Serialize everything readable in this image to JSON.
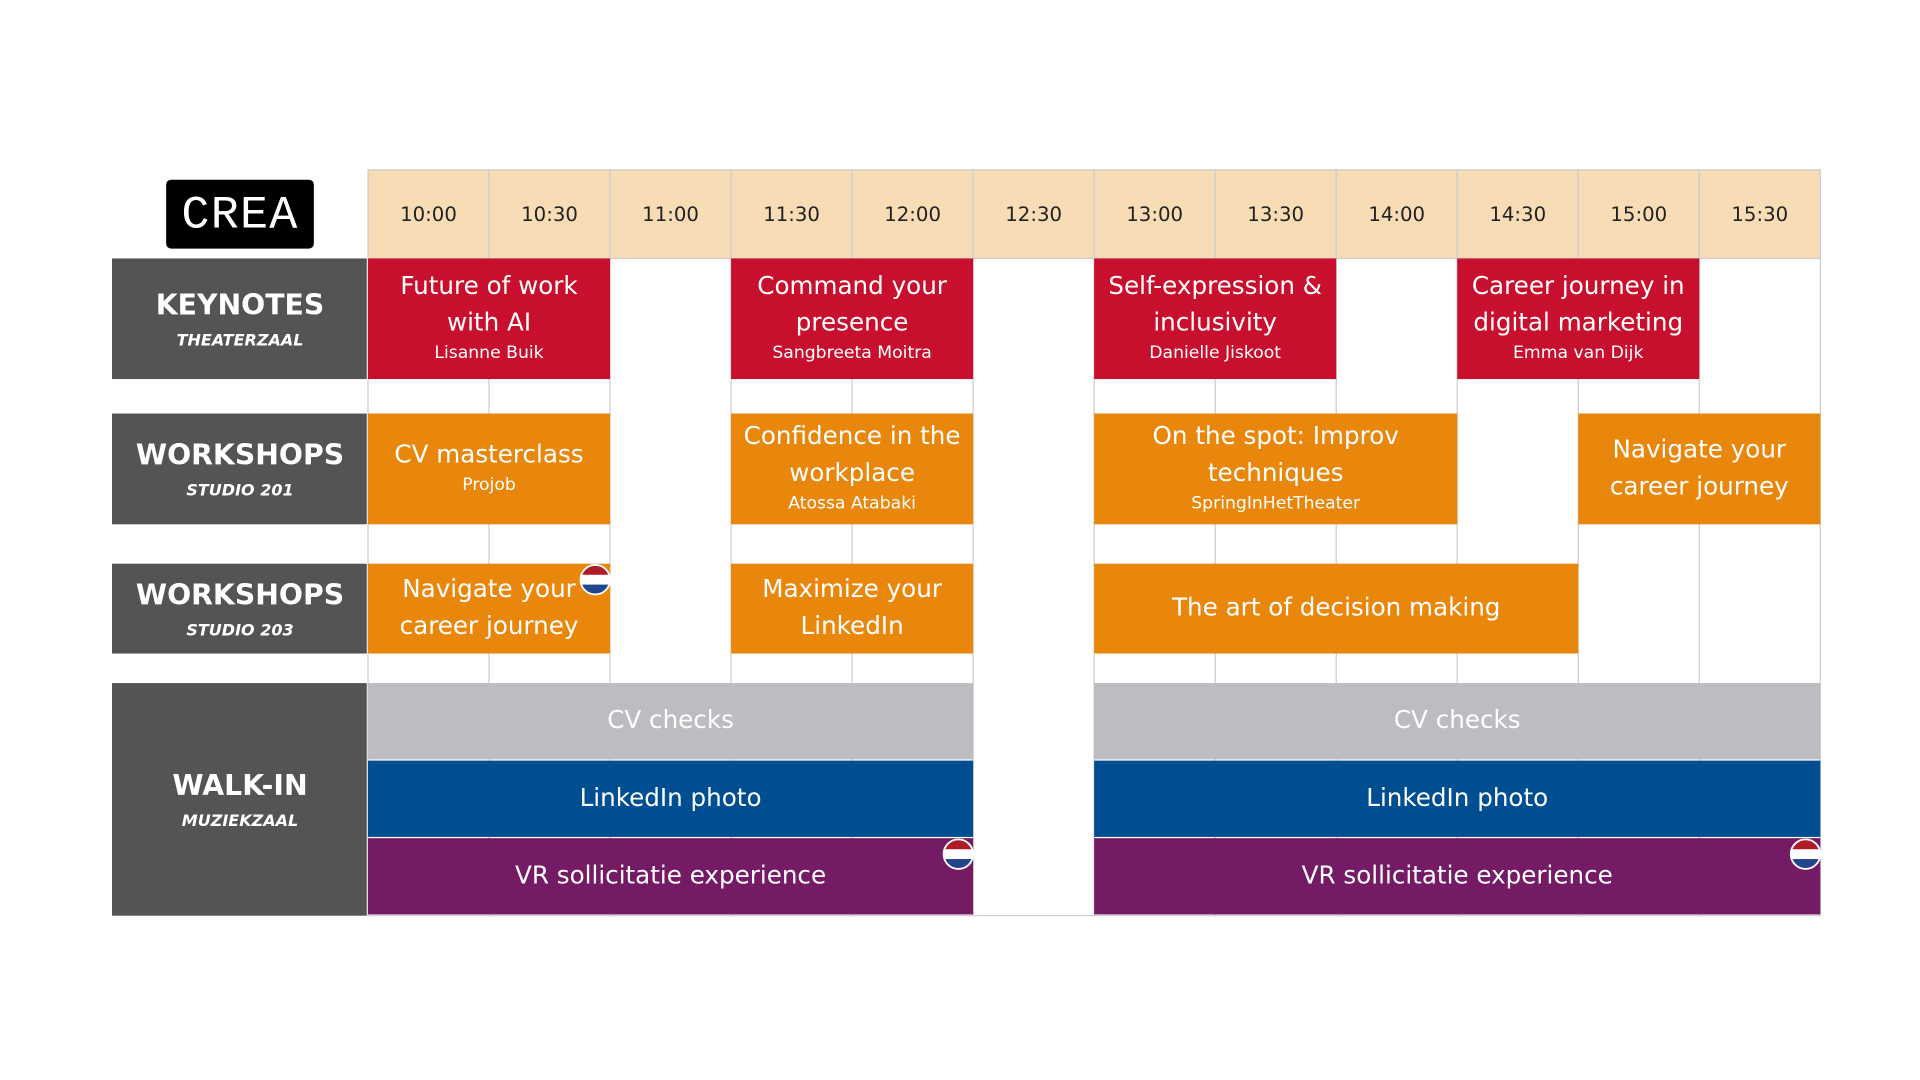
{
  "logo": "CREA",
  "times": [
    "10:00",
    "10:30",
    "11:00",
    "11:30",
    "12:00",
    "12:30",
    "13:00",
    "13:30",
    "14:00",
    "14:30",
    "15:00",
    "15:30"
  ],
  "rows": [
    {
      "name": "KEYNOTES",
      "room": "THEATERZAAL",
      "color": "#c8102e",
      "sessions": [
        {
          "title": "Future of work with AI",
          "speaker": "Lisanne Buik",
          "start": "10:00",
          "span": 2
        },
        {
          "title": "Command your presence",
          "speaker": "Sangbreeta Moitra",
          "start": "11:30",
          "span": 2
        },
        {
          "title": "Self-expression & inclusivity",
          "speaker": "Danielle Jiskoot",
          "start": "13:00",
          "span": 2
        },
        {
          "title": "Career journey in digital marketing",
          "speaker": "Emma van Dijk",
          "start": "14:30",
          "span": 2
        }
      ]
    },
    {
      "name": "WORKSHOPS",
      "room": "STUDIO 201",
      "color": "#e8870b",
      "sessions": [
        {
          "title": "CV masterclass",
          "speaker": "Projob",
          "start": "10:00",
          "span": 2
        },
        {
          "title": "Confidence in the workplace",
          "speaker": "Atossa Atabaki",
          "start": "11:30",
          "span": 2
        },
        {
          "title": "On the spot: Improv techniques",
          "speaker": "SpringInHetTheater",
          "start": "13:00",
          "span": 3
        },
        {
          "title": "Navigate your career journey",
          "start": "15:00",
          "span": 2
        }
      ]
    },
    {
      "name": "WORKSHOPS",
      "room": "STUDIO 203",
      "color": "#e8870b",
      "sessions": [
        {
          "title": "Navigate your career journey",
          "start": "10:00",
          "span": 2,
          "dutch": true
        },
        {
          "title": "Maximize your LinkedIn",
          "start": "11:30",
          "span": 2
        },
        {
          "title": "The art of decision making",
          "start": "13:00",
          "span": 4
        }
      ]
    },
    {
      "name": "WALK-IN",
      "room": "MUZIEKZAAL",
      "lanes": [
        {
          "color": "#bcbdc0",
          "sessions": [
            {
              "title": "CV checks",
              "start": "10:00",
              "span": 5
            },
            {
              "title": "CV checks",
              "start": "13:00",
              "span": 6
            }
          ]
        },
        {
          "color": "#004e92",
          "sessions": [
            {
              "title": "LinkedIn photo",
              "start": "10:00",
              "span": 5
            },
            {
              "title": "LinkedIn photo",
              "start": "13:00",
              "span": 6
            }
          ]
        },
        {
          "color": "#751b66",
          "sessions": [
            {
              "title": "VR sollicitatie experience",
              "start": "10:00",
              "span": 5,
              "dutch": true
            },
            {
              "title": "VR sollicitatie experience",
              "start": "13:00",
              "span": 6,
              "dutch": true
            }
          ]
        }
      ]
    }
  ]
}
